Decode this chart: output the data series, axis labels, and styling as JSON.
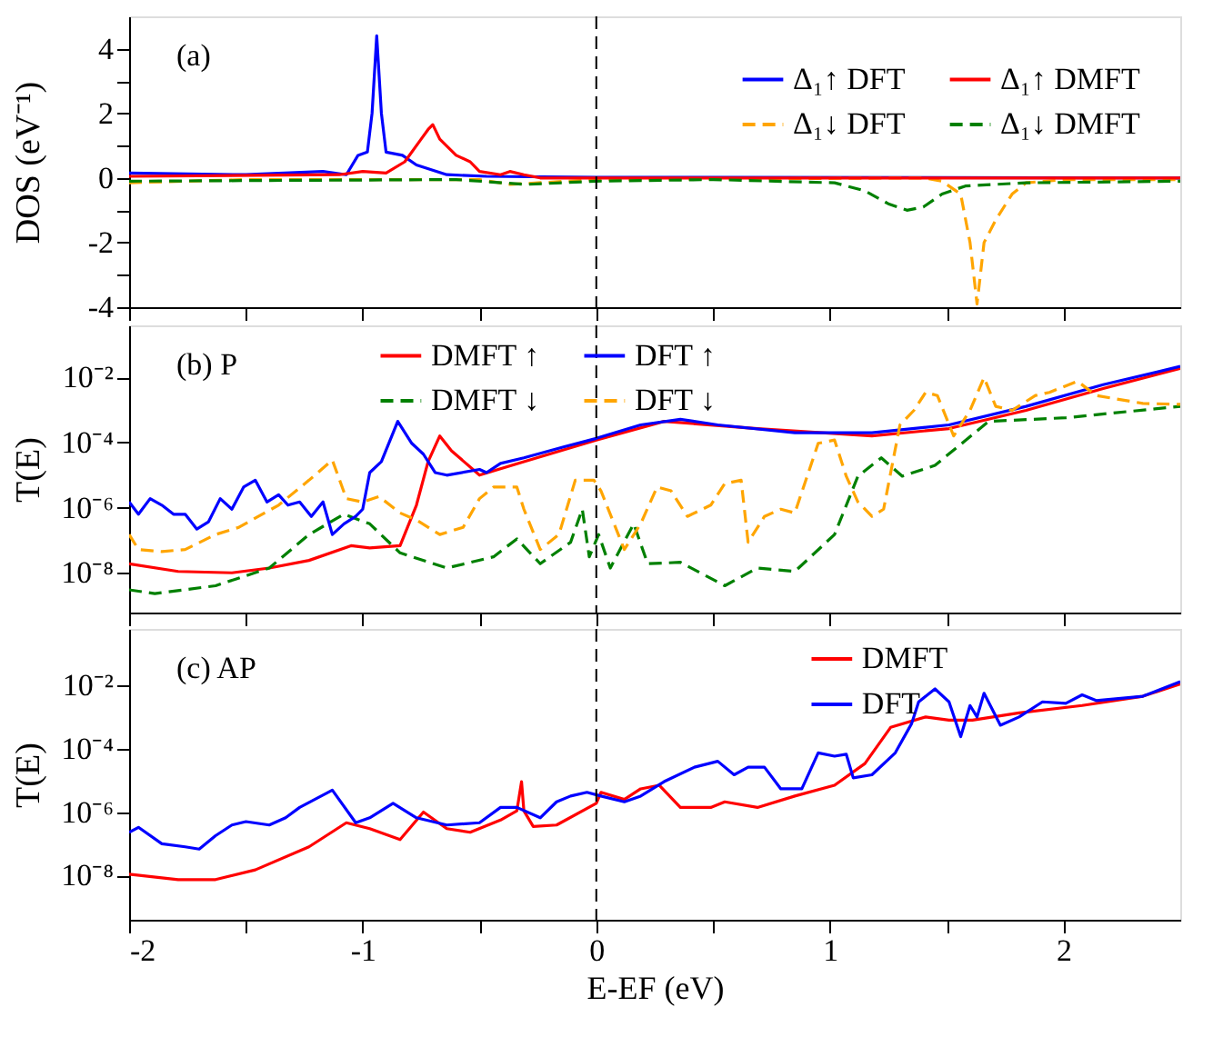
{
  "chart_data": [
    {
      "type": "line",
      "ylabel": "DOS (eV⁻¹)",
      "annotations": [
        "(a)"
      ],
      "legend": "top right",
      "tick_labels": "y",
      "xlim": [
        -2,
        2.5
      ],
      "xticks": [
        -2,
        {
          "value": -1.5,
          "label": null
        },
        -1,
        {
          "value": -0.5,
          "label": null
        },
        0,
        {
          "value": 0.5,
          "label": null
        },
        1,
        {
          "value": 1.5,
          "label": null
        },
        2
      ],
      "ylim": [
        -4,
        5
      ],
      "yticks": [
        -4,
        {
          "value": -3,
          "label": null
        },
        -2,
        {
          "value": -1,
          "label": null
        },
        0,
        {
          "value": 1,
          "label": null
        },
        2,
        {
          "value": 3,
          "label": null
        },
        4
      ],
      "ref_lines": [
        {
          "axis": "x",
          "value": 0,
          "color": "#000000",
          "line_style": "dashed"
        }
      ],
      "series": [
        {
          "name": "Δ₁↑ DFT",
          "color": "#0000ff",
          "line_style": "solid",
          "x": [
            -2,
            -1.5,
            -1.17,
            -1.07,
            -1.02,
            -0.98,
            -0.96,
            -0.94,
            -0.92,
            -0.9,
            -0.83,
            -0.77,
            -0.64,
            -0.47,
            0,
            2.5
          ],
          "values": [
            0.15,
            0.1,
            0.2,
            0.1,
            0.7,
            0.8,
            2,
            4.4,
            2,
            0.8,
            0.7,
            0.4,
            0.1,
            0.05,
            0.02,
            0
          ]
        },
        {
          "name": "Δ₁↓ DFT",
          "color": "#ffa500",
          "line_style": "dashed",
          "x": [
            -2,
            -1.5,
            -0.5,
            -0.37,
            0,
            1.4,
            1.48,
            1.56,
            1.6,
            1.63,
            1.66,
            1.71,
            1.78,
            1.84,
            2.01,
            2.5
          ],
          "values": [
            -0.15,
            -0.05,
            -0.05,
            -0.2,
            -0.05,
            0,
            -0.1,
            -0.5,
            -2,
            -3.9,
            -2,
            -1.3,
            -0.5,
            -0.15,
            -0.05,
            -0.05
          ]
        },
        {
          "name": "Δ₁↑ DMFT",
          "color": "#ff0000",
          "line_style": "solid",
          "x": [
            -2,
            -1.1,
            -1.0,
            -0.9,
            -0.82,
            -0.75,
            -0.72,
            -0.7,
            -0.67,
            -0.6,
            -0.54,
            -0.5,
            -0.41,
            -0.37,
            -0.31,
            -0.24,
            2.5
          ],
          "values": [
            0.05,
            0.1,
            0.2,
            0.15,
            0.5,
            1.2,
            1.5,
            1.65,
            1.2,
            0.7,
            0.5,
            0.2,
            0.1,
            0.2,
            0.1,
            0,
            0
          ]
        },
        {
          "name": "Δ₁↓ DMFT",
          "color": "#008000",
          "line_style": "dashed",
          "x": [
            -2,
            -0.6,
            -0.3,
            0,
            0.5,
            1.02,
            1.15,
            1.25,
            1.33,
            1.4,
            1.48,
            1.58,
            1.84,
            2.5
          ],
          "values": [
            -0.1,
            -0.05,
            -0.2,
            -0.1,
            -0.05,
            -0.15,
            -0.4,
            -0.8,
            -1.0,
            -0.9,
            -0.5,
            -0.25,
            -0.15,
            -0.1
          ]
        }
      ]
    },
    {
      "type": "line",
      "ylabel": "T(E)",
      "annotations": [
        "(b) P"
      ],
      "legend": "top",
      "tick_labels": "y",
      "log": "y",
      "xlim": [
        -2,
        2.5
      ],
      "xticks": [
        -2,
        {
          "value": -1.5,
          "label": null
        },
        -1,
        {
          "value": -0.5,
          "label": null
        },
        0,
        {
          "value": 0.5,
          "label": null
        },
        1,
        {
          "value": 1.5,
          "label": null
        },
        2
      ],
      "ylim": [
        6e-10,
        0.4
      ],
      "yticks": [
        {
          "value": 1e-08,
          "label": "10⁻⁸"
        },
        {
          "value": 1e-06,
          "label": "10⁻⁶"
        },
        {
          "value": 0.0001,
          "label": "10⁻⁴"
        },
        {
          "value": 0.01,
          "label": "10⁻²"
        }
      ],
      "ref_lines": [
        {
          "axis": "x",
          "value": 0,
          "color": "#000000",
          "line_style": "dashed"
        }
      ],
      "series": [
        {
          "name": "DMFT ↑",
          "color": "#ff0000",
          "line_style": "solid",
          "x": [
            -2,
            -1.79,
            -1.56,
            -1.4,
            -1.23,
            -1.05,
            -0.97,
            -0.84,
            -0.77,
            -0.72,
            -0.67,
            -0.62,
            -0.5,
            -0.31,
            0,
            0.29,
            0.69,
            1.18,
            1.51,
            1.84,
            2.17,
            2.5
          ],
          "values": [
            1.9e-08,
            1.1e-08,
            1e-08,
            1.4e-08,
            2.4e-08,
            6.8e-08,
            5.8e-08,
            6.8e-08,
            1.2e-06,
            2.6e-05,
            0.00016,
            5.6e-05,
            1e-05,
            2.6e-05,
            0.00012,
            0.00045,
            0.00027,
            0.00016,
            0.00027,
            0.00098,
            0.0046,
            0.019
          ]
        },
        {
          "name": "DMFT ↓",
          "color": "#008000",
          "line_style": "dashed",
          "x": [
            -2,
            -1.89,
            -1.63,
            -1.4,
            -1.23,
            -1.08,
            -0.97,
            -0.84,
            -0.64,
            -0.44,
            -0.34,
            -0.24,
            -0.11,
            -0.06,
            -0.03,
            0.01,
            0.06,
            0.16,
            0.22,
            0.36,
            0.55,
            0.69,
            0.85,
            1.02,
            1.12,
            1.22,
            1.31,
            1.45,
            1.68,
            2.01,
            2.5
          ],
          "values": [
            3e-09,
            2.3e-09,
            4e-09,
            1.4e-08,
            1.5e-07,
            6.3e-07,
            3.2e-07,
            4.1e-08,
            1.4e-08,
            3.1e-08,
            1.1e-07,
            1.9e-08,
            8.7e-08,
            9e-07,
            3.1e-08,
            1.5e-07,
            1.4e-08,
            3.2e-07,
            1.9e-08,
            2.1e-08,
            4e-09,
            1.4e-08,
            1.1e-08,
            1.5e-07,
            9.3e-06,
            3.4e-05,
            9.3e-06,
            2e-05,
            0.00045,
            0.00058,
            0.0013
          ]
        },
        {
          "name": "DFT ↑",
          "color": "#0000ff",
          "line_style": "solid",
          "x": [
            -2,
            -1.96,
            -1.91,
            -1.86,
            -1.81,
            -1.76,
            -1.71,
            -1.66,
            -1.61,
            -1.56,
            -1.51,
            -1.46,
            -1.41,
            -1.36,
            -1.32,
            -1.27,
            -1.22,
            -1.17,
            -1.13,
            -1.08,
            -1.03,
            -1.0,
            -0.97,
            -0.92,
            -0.85,
            -0.79,
            -0.74,
            -0.69,
            -0.64,
            -0.5,
            -0.47,
            -0.41,
            -0.31,
            -0.14,
            0,
            0.19,
            0.36,
            0.52,
            0.85,
            1.18,
            1.51,
            1.84,
            2.17,
            2.5
          ],
          "values": [
            1.5e-06,
            6.3e-07,
            1.9e-06,
            1.2e-06,
            6.3e-07,
            6.3e-07,
            2.2e-07,
            3.7e-07,
            1.9e-06,
            9e-07,
            4.3e-06,
            7e-06,
            1.5e-06,
            2.5e-06,
            1.2e-06,
            1.5e-06,
            5.4e-07,
            1.5e-06,
            1.5e-07,
            3.2e-07,
            5.4e-07,
            9e-07,
            1.2e-05,
            2.6e-05,
            0.00045,
            9.5e-05,
            4.4e-05,
            1.2e-05,
            1e-05,
            1.5e-05,
            1.2e-05,
            2.3e-05,
            3.4e-05,
            7.4e-05,
            0.000135,
            0.00035,
            0.00052,
            0.00035,
            0.0002,
            0.0002,
            0.00035,
            0.0013,
            0.006,
            0.022
          ]
        },
        {
          "name": "DFT ↓",
          "color": "#ffa500",
          "line_style": "dashed",
          "x": [
            -2,
            -1.96,
            -1.86,
            -1.76,
            -1.63,
            -1.53,
            -1.36,
            -1.23,
            -1.13,
            -1.07,
            -1.0,
            -0.93,
            -0.84,
            -0.77,
            -0.67,
            -0.57,
            -0.5,
            -0.44,
            -0.34,
            -0.31,
            -0.24,
            -0.16,
            -0.09,
            -0.01,
            0.02,
            0.12,
            0.19,
            0.26,
            0.32,
            0.39,
            0.49,
            0.55,
            0.62,
            0.65,
            0.72,
            0.79,
            0.85,
            0.95,
            1.02,
            1.07,
            1.12,
            1.18,
            1.23,
            1.3,
            1.36,
            1.41,
            1.46,
            1.53,
            1.6,
            1.66,
            1.71,
            1.78,
            1.88,
            1.94,
            2.06,
            2.14,
            2.34,
            2.5
          ],
          "values": [
            1.5e-07,
            5.2e-08,
            4.5e-08,
            5.2e-08,
            1.5e-07,
            2.5e-07,
            1.2e-06,
            7e-06,
            2.9e-05,
            1.9e-06,
            1.5e-06,
            2.2e-06,
            6.9e-07,
            4.2e-07,
            1.5e-07,
            2.5e-07,
            1.9e-06,
            4.3e-06,
            4.3e-06,
            9e-07,
            5.2e-08,
            1.5e-07,
            7e-06,
            7e-06,
            3.3e-06,
            5.2e-08,
            3.2e-07,
            4.3e-06,
            3.3e-06,
            5.4e-07,
            1.2e-06,
            5.5e-06,
            7e-06,
            8.7e-08,
            5.4e-07,
            9e-07,
            6.9e-07,
            9.5e-05,
            0.00012,
            9.3e-06,
            1.5e-06,
            5.4e-07,
            9e-07,
            0.00035,
            0.00098,
            0.0035,
            0.0028,
            0.00016,
            0.00098,
            0.01,
            0.0013,
            0.00098,
            0.0028,
            0.0035,
            0.0077,
            0.0028,
            0.0016,
            0.0015
          ]
        }
      ]
    },
    {
      "type": "line",
      "ylabel": "T(E)",
      "xlabel": "E-EF (eV)",
      "annotations": [
        "(c) AP"
      ],
      "legend": "top",
      "log": "y",
      "xlim": [
        -2,
        2.5
      ],
      "xticks": [
        -2,
        {
          "value": -1.5,
          "label": null
        },
        -1,
        {
          "value": -0.5,
          "label": null
        },
        0,
        {
          "value": 0.5,
          "label": null
        },
        1,
        {
          "value": 1.5,
          "label": null
        },
        2
      ],
      "ylim": [
        4e-10,
        0.6
      ],
      "yticks": [
        {
          "value": 1e-08,
          "label": "10⁻⁸"
        },
        {
          "value": 1e-06,
          "label": "10⁻⁶"
        },
        {
          "value": 0.0001,
          "label": "10⁻⁴"
        },
        {
          "value": 0.01,
          "label": "10⁻²"
        }
      ],
      "ref_lines": [
        {
          "axis": "x",
          "value": 0,
          "color": "#000000",
          "line_style": "dashed"
        }
      ],
      "series": [
        {
          "name": "DMFT",
          "color": "#ff0000",
          "line_style": "solid",
          "x": [
            -2,
            -1.79,
            -1.63,
            -1.46,
            -1.23,
            -1.07,
            -0.97,
            -0.84,
            -0.74,
            -0.64,
            -0.54,
            -0.41,
            -0.34,
            -0.32,
            -0.31,
            -0.27,
            -0.17,
            0,
            0.02,
            0.12,
            0.19,
            0.27,
            0.36,
            0.49,
            0.55,
            0.69,
            0.85,
            1.02,
            1.15,
            1.26,
            1.41,
            1.51,
            1.61,
            1.81,
            2.08,
            2.34,
            2.5
          ],
          "values": [
            1.1e-08,
            7.4e-09,
            7.4e-09,
            1.5e-08,
            8e-08,
            4.6e-07,
            3e-07,
            1.35e-07,
            1e-06,
            3e-07,
            2.3e-07,
            5.6e-07,
            1.1e-06,
            9.1e-06,
            1.1e-06,
            3.5e-07,
            3.9e-07,
            1.9e-06,
            4.2e-06,
            2.5e-06,
            5.4e-06,
            7e-06,
            1.4e-06,
            1.4e-06,
            2.1e-06,
            1.4e-06,
            3.2e-06,
            7e-06,
            3.4e-05,
            0.00047,
            0.001,
            0.00079,
            0.00079,
            0.00135,
            0.0023,
            0.0045,
            0.011
          ]
        },
        {
          "name": "DFT",
          "color": "#0000ff",
          "line_style": "solid",
          "x": [
            -2,
            -1.96,
            -1.86,
            -1.76,
            -1.7,
            -1.63,
            -1.56,
            -1.5,
            -1.4,
            -1.33,
            -1.27,
            -1.13,
            -1.03,
            -0.97,
            -0.87,
            -0.77,
            -0.64,
            -0.5,
            -0.41,
            -0.34,
            -0.24,
            -0.17,
            -0.11,
            -0.04,
            0.02,
            0.12,
            0.19,
            0.29,
            0.42,
            0.52,
            0.59,
            0.65,
            0.72,
            0.79,
            0.88,
            0.95,
            1.02,
            1.07,
            1.1,
            1.18,
            1.28,
            1.35,
            1.38,
            1.45,
            1.51,
            1.56,
            1.6,
            1.63,
            1.66,
            1.73,
            1.81,
            1.91,
            2.01,
            2.08,
            2.14,
            2.34,
            2.5
          ],
          "values": [
            2.3e-07,
            3.3e-07,
            1e-07,
            8e-08,
            6.8e-08,
            1.8e-07,
            3.9e-07,
            5e-07,
            3.9e-07,
            6.6e-07,
            1.4e-06,
            4.9e-06,
            4.6e-07,
            6.6e-07,
            1.9e-06,
            6.6e-07,
            3.9e-07,
            4.6e-07,
            1.4e-06,
            1.4e-06,
            6.6e-07,
            2.1e-06,
            3.2e-06,
            4.2e-06,
            3.2e-06,
            2.1e-06,
            3.2e-06,
            9.1e-06,
            2.6e-05,
            4e-05,
            1.5e-05,
            2.6e-05,
            2.6e-05,
            5.4e-06,
            5.4e-06,
            7.4e-05,
            5.8e-05,
            6.7e-05,
            1.2e-05,
            1.5e-05,
            7.4e-05,
            0.00062,
            0.003,
            0.0077,
            0.003,
            0.00024,
            0.0023,
            0.001,
            0.0056,
            0.00055,
            0.001,
            0.003,
            0.0027,
            0.005,
            0.0033,
            0.0045,
            0.013
          ]
        }
      ]
    }
  ]
}
